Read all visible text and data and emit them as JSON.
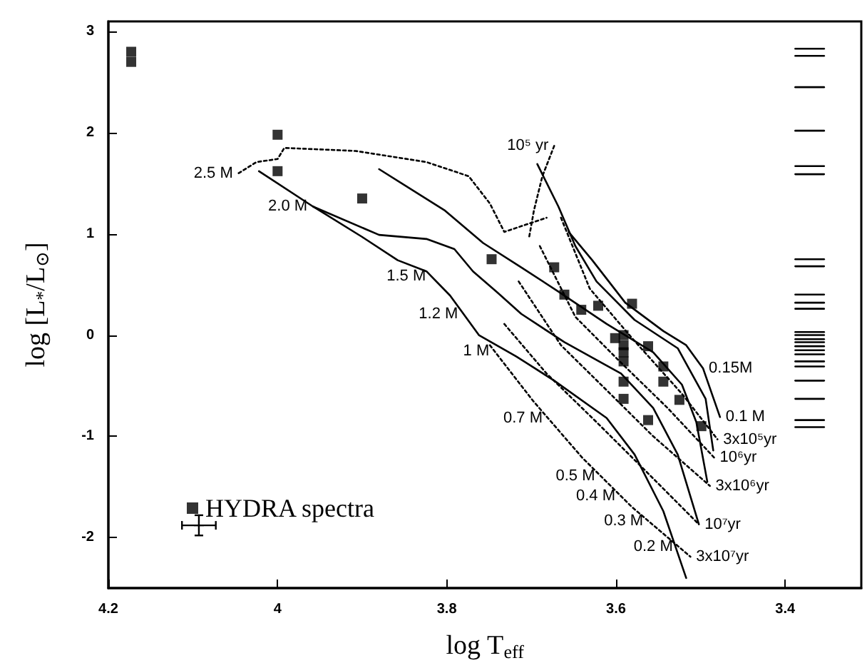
{
  "chart_data": {
    "type": "line",
    "xlabel": "log T$_{eff}$",
    "ylabel": "log [L$_{*}$/L$_{⊙}$]",
    "xlim": [
      4.2,
      3.31
    ],
    "ylim": [
      -2.5,
      3.1
    ],
    "xticks": [
      4.2,
      4,
      3.8,
      3.6,
      3.4
    ],
    "yticks": [
      -2,
      -1,
      0,
      1,
      2,
      3
    ],
    "grid": false,
    "legend": "bottom left",
    "marker": "none",
    "line_style": "solid",
    "series": [
      {
        "name": "HYDRA spectra",
        "type": "scatter",
        "marker": "square",
        "color": "#000000",
        "x": [
          4.173,
          4.173,
          4.0,
          4.0,
          3.9,
          3.747,
          3.673,
          3.661,
          3.641,
          3.621,
          3.581,
          3.601,
          3.591,
          3.591,
          3.591,
          3.591,
          3.591,
          3.591,
          3.562,
          3.544,
          3.544,
          3.525,
          3.562,
          3.499
        ],
        "values": [
          2.8,
          2.7,
          1.98,
          1.62,
          1.35,
          0.75,
          0.67,
          0.4,
          0.25,
          0.29,
          0.31,
          -0.03,
          0.0,
          -0.1,
          -0.17,
          -0.26,
          -0.46,
          -0.63,
          -0.11,
          -0.31,
          -0.46,
          -0.64,
          -0.84,
          -0.9
        ]
      },
      {
        "type": "scatter",
        "marker": "cross",
        "color": "#000000",
        "x": [
          4.093
        ],
        "values": [
          -1.88
        ],
        "errors": [
          0.1
        ],
        "xerrors": [
          0.02
        ]
      },
      {
        "color": "#000000",
        "x": [
          4.022,
          3.958,
          3.9,
          3.858,
          3.824,
          3.796,
          3.762,
          3.718,
          3.673,
          3.611,
          3.578,
          3.544,
          3.517
        ],
        "values": [
          1.62,
          1.27,
          0.97,
          0.74,
          0.63,
          0.39,
          0,
          -0.21,
          -0.45,
          -0.82,
          -1.18,
          -1.74,
          -2.4
        ]
      },
      {
        "color": "#000000",
        "x": [
          3.958,
          3.88,
          3.824,
          3.791,
          3.769,
          3.74,
          3.712,
          3.661,
          3.594,
          3.556,
          3.527,
          3.502
        ],
        "values": [
          1.27,
          0.99,
          0.95,
          0.85,
          0.63,
          0.42,
          0.21,
          -0.07,
          -0.38,
          -0.72,
          -1.18,
          -1.87
        ]
      },
      {
        "color": "#000000",
        "x": [
          3.88,
          3.802,
          3.757,
          3.712,
          3.668,
          3.611,
          3.556,
          3.522,
          3.505,
          3.492
        ],
        "values": [
          1.64,
          1.23,
          0.91,
          0.67,
          0.43,
          0.11,
          -0.17,
          -0.49,
          -0.86,
          -1.45
        ]
      },
      {
        "color": "#000000",
        "x": [
          3.693,
          3.668,
          3.648,
          3.623,
          3.578,
          3.527,
          3.494,
          3.485
        ],
        "values": [
          1.69,
          1.27,
          0.88,
          0.53,
          0.15,
          -0.13,
          -0.63,
          -1.14
        ]
      },
      {
        "color": "#000000",
        "x": [
          3.656,
          3.628,
          3.589,
          3.544,
          3.517,
          3.497,
          3.477
        ],
        "values": [
          1.02,
          0.74,
          0.32,
          0.04,
          -0.1,
          -0.33,
          -0.81
        ]
      },
      {
        "color": "#000000",
        "line_style": "dotted",
        "x": [
          4.046,
          4.025,
          4.0,
          3.992,
          3.908,
          3.824,
          3.774,
          3.749,
          3.732,
          3.682
        ],
        "values": [
          1.6,
          1.71,
          1.74,
          1.85,
          1.82,
          1.71,
          1.57,
          1.3,
          1.02,
          1.16
        ]
      },
      {
        "color": "#000000",
        "line_style": "dotted",
        "x": [
          3.673,
          3.687,
          3.697,
          3.703
        ],
        "values": [
          1.87,
          1.57,
          1.23,
          0.95
        ]
      },
      {
        "color": "#000000",
        "line_style": "dotted",
        "x": [
          3.665,
          3.631,
          3.581,
          3.522,
          3.48
        ],
        "values": [
          1.16,
          0.46,
          -0.03,
          -0.58,
          -1.03
        ]
      },
      {
        "color": "#000000",
        "line_style": "dotted",
        "x": [
          3.69,
          3.648,
          3.598,
          3.539,
          3.484
        ],
        "values": [
          0.88,
          0.18,
          -0.24,
          -0.72,
          -1.21
        ]
      },
      {
        "color": "#000000",
        "line_style": "dotted",
        "x": [
          3.715,
          3.665,
          3.614,
          3.556,
          3.489
        ],
        "values": [
          0.53,
          -0.1,
          -0.52,
          -1.0,
          -1.49
        ]
      },
      {
        "color": "#000000",
        "line_style": "dotted",
        "x": [
          3.732,
          3.682,
          3.623,
          3.564,
          3.502
        ],
        "values": [
          0.11,
          -0.38,
          -0.86,
          -1.35,
          -1.87
        ]
      },
      {
        "color": "#000000",
        "line_style": "dotted",
        "x": [
          3.749,
          3.698,
          3.64,
          3.581,
          3.512
        ],
        "values": [
          -0.1,
          -0.65,
          -1.21,
          -1.7,
          -2.19
        ]
      },
      {
        "color": "#000000",
        "x": [
          3.388,
          3.354
        ],
        "values": [
          2.83,
          2.83
        ]
      },
      {
        "color": "#000000",
        "x": [
          3.388,
          3.354
        ],
        "values": [
          2.76,
          2.76
        ]
      },
      {
        "color": "#000000",
        "x": [
          3.388,
          3.354
        ],
        "values": [
          2.45,
          2.45
        ]
      },
      {
        "color": "#000000",
        "x": [
          3.388,
          3.354
        ],
        "values": [
          2.02,
          2.02
        ]
      },
      {
        "color": "#000000",
        "x": [
          3.388,
          3.354
        ],
        "values": [
          1.67,
          1.67
        ]
      },
      {
        "color": "#000000",
        "x": [
          3.388,
          3.354
        ],
        "values": [
          1.59,
          1.59
        ]
      },
      {
        "color": "#000000",
        "x": [
          3.388,
          3.354
        ],
        "values": [
          0.75,
          0.75
        ]
      },
      {
        "color": "#000000",
        "x": [
          3.388,
          3.354
        ],
        "values": [
          0.68,
          0.68
        ]
      },
      {
        "color": "#000000",
        "x": [
          3.388,
          3.354
        ],
        "values": [
          0.4,
          0.4
        ]
      },
      {
        "color": "#000000",
        "x": [
          3.388,
          3.354
        ],
        "values": [
          0.32,
          0.32
        ]
      },
      {
        "color": "#000000",
        "x": [
          3.388,
          3.354
        ],
        "values": [
          0.26,
          0.26
        ]
      },
      {
        "color": "#000000",
        "x": [
          3.388,
          3.354
        ],
        "values": [
          0.03,
          0.03
        ]
      },
      {
        "color": "#000000",
        "x": [
          3.388,
          3.354
        ],
        "values": [
          0,
          0
        ]
      },
      {
        "color": "#000000",
        "x": [
          3.388,
          3.354
        ],
        "values": [
          -0.04,
          -0.04
        ]
      },
      {
        "color": "#000000",
        "x": [
          3.388,
          3.354
        ],
        "values": [
          -0.07,
          -0.07
        ]
      },
      {
        "color": "#000000",
        "x": [
          3.388,
          3.354
        ],
        "values": [
          -0.11,
          -0.11
        ]
      },
      {
        "color": "#000000",
        "x": [
          3.388,
          3.354
        ],
        "values": [
          -0.15,
          -0.15
        ]
      },
      {
        "color": "#000000",
        "x": [
          3.388,
          3.354
        ],
        "values": [
          -0.19,
          -0.19
        ]
      },
      {
        "color": "#000000",
        "x": [
          3.388,
          3.354
        ],
        "values": [
          -0.26,
          -0.26
        ]
      },
      {
        "color": "#000000",
        "x": [
          3.388,
          3.354
        ],
        "values": [
          -0.31,
          -0.31
        ]
      },
      {
        "color": "#000000",
        "x": [
          3.388,
          3.354
        ],
        "values": [
          -0.45,
          -0.45
        ]
      },
      {
        "color": "#000000",
        "x": [
          3.388,
          3.354
        ],
        "values": [
          -0.63,
          -0.63
        ]
      },
      {
        "color": "#000000",
        "x": [
          3.388,
          3.354
        ],
        "values": [
          -0.84,
          -0.84
        ]
      },
      {
        "color": "#000000",
        "x": [
          3.388,
          3.354
        ],
        "values": [
          -0.91,
          -0.91
        ]
      }
    ],
    "annotations": [
      {
        "text": "2.5 M",
        "x": 4.046,
        "y": 1.6
      },
      {
        "text": "2.0 M",
        "x": 3.958,
        "y": 1.27
      },
      {
        "text": "1.5 M",
        "x": 3.818,
        "y": 0.58
      },
      {
        "text": "1.2 M",
        "x": 3.78,
        "y": 0.21
      },
      {
        "text": "1 M",
        "x": 3.743,
        "y": -0.16
      },
      {
        "text": "0.7 M",
        "x": 3.68,
        "y": -0.82
      },
      {
        "text": "0.5 M",
        "x": 3.618,
        "y": -1.39
      },
      {
        "text": "0.4 M",
        "x": 3.594,
        "y": -1.59
      },
      {
        "text": "0.3 M",
        "x": 3.561,
        "y": -1.84
      },
      {
        "text": "0.2 M",
        "x": 3.526,
        "y": -2.09
      },
      {
        "text": "0.15M",
        "x": 3.497,
        "y": -0.33
      },
      {
        "text": "0.1 M",
        "x": 3.477,
        "y": -0.81
      },
      {
        "text": "3x10⁵yr",
        "x": 3.48,
        "y": -1.03
      },
      {
        "text": "10⁶yr",
        "x": 3.484,
        "y": -1.21
      },
      {
        "text": "3x10⁶yr",
        "x": 3.489,
        "y": -1.49
      },
      {
        "text": "10⁷yr",
        "x": 3.502,
        "y": -1.87
      },
      {
        "text": "3x10⁷yr",
        "x": 3.512,
        "y": -2.19
      },
      {
        "text": "10⁵ yr",
        "x": 3.673,
        "y": 1.87
      }
    ]
  }
}
